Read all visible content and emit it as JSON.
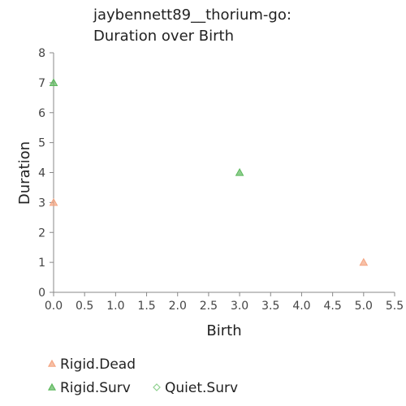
{
  "chart_data": {
    "type": "scatter",
    "title": [
      "jaybennett89__thorium-go:",
      "Duration over Birth"
    ],
    "xlabel": "Birth",
    "ylabel": "Duration",
    "xlim": [
      0,
      5.5
    ],
    "ylim": [
      0,
      8
    ],
    "x_ticks": [
      "0.0",
      "0.5",
      "1.0",
      "1.5",
      "2.0",
      "2.5",
      "3.0",
      "3.5",
      "4.0",
      "4.5",
      "5.0",
      "5.5"
    ],
    "y_ticks": [
      "0",
      "1",
      "2",
      "3",
      "4",
      "5",
      "6",
      "7",
      "8"
    ],
    "grid": false,
    "legend_position": "bottom",
    "series": [
      {
        "name": "Rigid.Dead",
        "marker": "triangle",
        "color": "#f4a582",
        "points": [
          {
            "x": 0,
            "y": 3
          },
          {
            "x": 5,
            "y": 1
          }
        ]
      },
      {
        "name": "Rigid.Surv",
        "marker": "triangle",
        "color": "#5cb85c",
        "points": [
          {
            "x": 0,
            "y": 7
          },
          {
            "x": 3,
            "y": 4
          }
        ]
      },
      {
        "name": "Quiet.Surv",
        "marker": "diamond",
        "color": "#8fd18f",
        "points": []
      }
    ]
  }
}
